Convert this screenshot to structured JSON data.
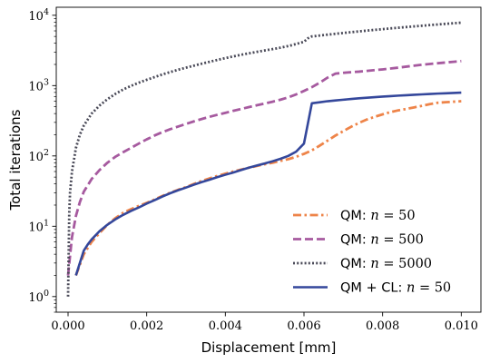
{
  "chart_data": {
    "type": "line",
    "xlabel": "Displacement [mm]",
    "ylabel": "Total iterations",
    "xlim": [
      -0.0003,
      0.0105
    ],
    "ylim": [
      0.6,
      13000
    ],
    "yscale": "log",
    "x_ticks": [
      0.0,
      0.002,
      0.004,
      0.006,
      0.008,
      0.01
    ],
    "x_tick_labels": [
      "0.000",
      "0.002",
      "0.004",
      "0.006",
      "0.008",
      "0.010"
    ],
    "y_ticks": [
      1,
      10,
      100,
      1000,
      10000
    ],
    "y_tick_labels": [
      {
        "base": "10",
        "exp": "0"
      },
      {
        "base": "10",
        "exp": "1"
      },
      {
        "base": "10",
        "exp": "2"
      },
      {
        "base": "10",
        "exp": "3"
      },
      {
        "base": "10",
        "exp": "4"
      }
    ],
    "grid": false,
    "legend_position": "lower-right",
    "series": [
      {
        "name_prefix": "QM: ",
        "name_math": "n",
        "name_suffix": " = 50",
        "color": "#EE8449",
        "dash": "dashdot",
        "points": [
          [
            0.0002,
            2
          ],
          [
            0.0004,
            4
          ],
          [
            0.0006,
            6
          ],
          [
            0.0008,
            8
          ],
          [
            0.001,
            10.5
          ],
          [
            0.0012,
            13
          ],
          [
            0.0014,
            15.5
          ],
          [
            0.0016,
            17.5
          ],
          [
            0.0018,
            19.5
          ],
          [
            0.002,
            21.5
          ],
          [
            0.0022,
            24
          ],
          [
            0.0024,
            27
          ],
          [
            0.0026,
            30
          ],
          [
            0.0028,
            33
          ],
          [
            0.003,
            36
          ],
          [
            0.0032,
            40
          ],
          [
            0.0034,
            44
          ],
          [
            0.0036,
            48
          ],
          [
            0.0038,
            52
          ],
          [
            0.004,
            56
          ],
          [
            0.0042,
            60
          ],
          [
            0.0044,
            64
          ],
          [
            0.0046,
            68
          ],
          [
            0.0048,
            72
          ],
          [
            0.005,
            76
          ],
          [
            0.0052,
            80
          ],
          [
            0.0054,
            85
          ],
          [
            0.0056,
            90
          ],
          [
            0.0058,
            97
          ],
          [
            0.006,
            107
          ],
          [
            0.0062,
            120
          ],
          [
            0.0064,
            140
          ],
          [
            0.0066,
            165
          ],
          [
            0.0068,
            195
          ],
          [
            0.007,
            225
          ],
          [
            0.0072,
            260
          ],
          [
            0.0074,
            295
          ],
          [
            0.0076,
            330
          ],
          [
            0.0078,
            360
          ],
          [
            0.008,
            390
          ],
          [
            0.0082,
            420
          ],
          [
            0.0084,
            445
          ],
          [
            0.0086,
            465
          ],
          [
            0.0088,
            490
          ],
          [
            0.009,
            515
          ],
          [
            0.0092,
            545
          ],
          [
            0.0094,
            570
          ],
          [
            0.0096,
            580
          ],
          [
            0.0098,
            590
          ],
          [
            0.01,
            600
          ]
        ]
      },
      {
        "name_prefix": "QM: ",
        "name_math": "n",
        "name_suffix": " = 500",
        "color": "#A65A9F",
        "dash": "dashed",
        "points": [
          [
            0.0,
            2
          ],
          [
            0.0001,
            7
          ],
          [
            0.0002,
            14
          ],
          [
            0.0003,
            22
          ],
          [
            0.0004,
            31
          ],
          [
            0.0006,
            47
          ],
          [
            0.0008,
            63
          ],
          [
            0.001,
            80
          ],
          [
            0.0012,
            97
          ],
          [
            0.0014,
            113
          ],
          [
            0.0016,
            130
          ],
          [
            0.0018,
            150
          ],
          [
            0.002,
            172
          ],
          [
            0.0022,
            195
          ],
          [
            0.0024,
            218
          ],
          [
            0.0026,
            240
          ],
          [
            0.0028,
            262
          ],
          [
            0.003,
            285
          ],
          [
            0.0032,
            310
          ],
          [
            0.0034,
            335
          ],
          [
            0.0036,
            360
          ],
          [
            0.0038,
            385
          ],
          [
            0.004,
            410
          ],
          [
            0.0042,
            438
          ],
          [
            0.0044,
            465
          ],
          [
            0.0046,
            495
          ],
          [
            0.0048,
            525
          ],
          [
            0.005,
            555
          ],
          [
            0.0052,
            590
          ],
          [
            0.0054,
            630
          ],
          [
            0.0056,
            680
          ],
          [
            0.0058,
            750
          ],
          [
            0.006,
            840
          ],
          [
            0.0062,
            950
          ],
          [
            0.0064,
            1100
          ],
          [
            0.0066,
            1300
          ],
          [
            0.0068,
            1480
          ],
          [
            0.007,
            1520
          ],
          [
            0.0072,
            1550
          ],
          [
            0.0074,
            1580
          ],
          [
            0.0076,
            1620
          ],
          [
            0.0078,
            1660
          ],
          [
            0.008,
            1700
          ],
          [
            0.0082,
            1750
          ],
          [
            0.0084,
            1800
          ],
          [
            0.0086,
            1860
          ],
          [
            0.0088,
            1920
          ],
          [
            0.009,
            1980
          ],
          [
            0.0092,
            2030
          ],
          [
            0.0094,
            2080
          ],
          [
            0.0096,
            2130
          ],
          [
            0.0098,
            2180
          ],
          [
            0.01,
            2230
          ]
        ]
      },
      {
        "name_prefix": "QM: ",
        "name_math": "n",
        "name_suffix": " = 5000",
        "color": "#4A4A58",
        "dash": "dotted",
        "points": [
          [
            0.0,
            1
          ],
          [
            3e-05,
            15
          ],
          [
            5e-05,
            30
          ],
          [
            0.0001,
            60
          ],
          [
            0.0002,
            130
          ],
          [
            0.0003,
            200
          ],
          [
            0.0004,
            270
          ],
          [
            0.0006,
            400
          ],
          [
            0.0008,
            520
          ],
          [
            0.001,
            640
          ],
          [
            0.0012,
            760
          ],
          [
            0.0014,
            880
          ],
          [
            0.0016,
            990
          ],
          [
            0.0018,
            1100
          ],
          [
            0.002,
            1210
          ],
          [
            0.0022,
            1320
          ],
          [
            0.0024,
            1440
          ],
          [
            0.0026,
            1560
          ],
          [
            0.0028,
            1680
          ],
          [
            0.003,
            1800
          ],
          [
            0.0032,
            1920
          ],
          [
            0.0034,
            2050
          ],
          [
            0.0036,
            2180
          ],
          [
            0.0038,
            2320
          ],
          [
            0.004,
            2460
          ],
          [
            0.0042,
            2600
          ],
          [
            0.0044,
            2740
          ],
          [
            0.0046,
            2880
          ],
          [
            0.0048,
            3020
          ],
          [
            0.005,
            3160
          ],
          [
            0.0052,
            3300
          ],
          [
            0.0054,
            3460
          ],
          [
            0.0056,
            3650
          ],
          [
            0.0058,
            3900
          ],
          [
            0.006,
            4200
          ],
          [
            0.0061,
            4700
          ],
          [
            0.0062,
            5000
          ],
          [
            0.0064,
            5150
          ],
          [
            0.0066,
            5300
          ],
          [
            0.0068,
            5450
          ],
          [
            0.007,
            5600
          ],
          [
            0.0072,
            5750
          ],
          [
            0.0074,
            5900
          ],
          [
            0.0076,
            6050
          ],
          [
            0.0078,
            6200
          ],
          [
            0.008,
            6350
          ],
          [
            0.0082,
            6500
          ],
          [
            0.0084,
            6650
          ],
          [
            0.0086,
            6800
          ],
          [
            0.0088,
            6950
          ],
          [
            0.009,
            7100
          ],
          [
            0.0092,
            7250
          ],
          [
            0.0094,
            7400
          ],
          [
            0.0096,
            7550
          ],
          [
            0.0098,
            7700
          ],
          [
            0.01,
            7850
          ]
        ]
      },
      {
        "name_prefix": "QM + CL: ",
        "name_math": "n",
        "name_suffix": " = 50",
        "color": "#34479B",
        "dash": "solid",
        "points": [
          [
            0.0002,
            2
          ],
          [
            0.0003,
            3
          ],
          [
            0.0004,
            4.5
          ],
          [
            0.0005,
            5.5
          ],
          [
            0.0006,
            6.5
          ],
          [
            0.0008,
            8.5
          ],
          [
            0.001,
            10.5
          ],
          [
            0.0012,
            12.5
          ],
          [
            0.0014,
            14.5
          ],
          [
            0.0016,
            16.5
          ],
          [
            0.0018,
            18.5
          ],
          [
            0.002,
            21
          ],
          [
            0.0022,
            23.5
          ],
          [
            0.0024,
            26.5
          ],
          [
            0.0026,
            29.5
          ],
          [
            0.0028,
            32.5
          ],
          [
            0.003,
            35.5
          ],
          [
            0.0032,
            39
          ],
          [
            0.0034,
            42.5
          ],
          [
            0.0036,
            46
          ],
          [
            0.0038,
            50
          ],
          [
            0.004,
            54
          ],
          [
            0.0042,
            58
          ],
          [
            0.0044,
            63
          ],
          [
            0.0046,
            68
          ],
          [
            0.0048,
            73
          ],
          [
            0.005,
            78
          ],
          [
            0.0052,
            84
          ],
          [
            0.0054,
            91
          ],
          [
            0.0056,
            100
          ],
          [
            0.0058,
            115
          ],
          [
            0.006,
            150
          ],
          [
            0.0062,
            560
          ],
          [
            0.0064,
            580
          ],
          [
            0.0066,
            600
          ],
          [
            0.0068,
            615
          ],
          [
            0.007,
            630
          ],
          [
            0.0072,
            645
          ],
          [
            0.0074,
            660
          ],
          [
            0.0076,
            672
          ],
          [
            0.0078,
            685
          ],
          [
            0.008,
            697
          ],
          [
            0.0082,
            708
          ],
          [
            0.0084,
            720
          ],
          [
            0.0086,
            730
          ],
          [
            0.0088,
            740
          ],
          [
            0.009,
            750
          ],
          [
            0.0092,
            760
          ],
          [
            0.0094,
            770
          ],
          [
            0.0096,
            778
          ],
          [
            0.0098,
            786
          ],
          [
            0.01,
            795
          ]
        ]
      }
    ]
  }
}
